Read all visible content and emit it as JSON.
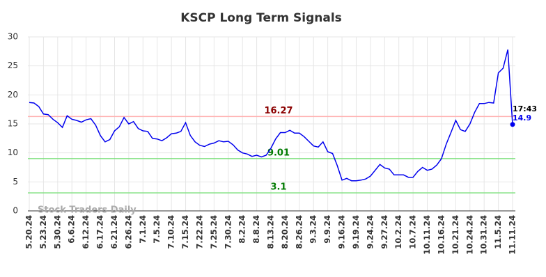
{
  "chart_data": {
    "type": "line",
    "title": "KSCP Long Term Signals",
    "watermark": "Stock Traders Daily",
    "annotation": "17:43",
    "categories": [
      "5.20.24",
      null,
      null,
      "5.23.24",
      null,
      null,
      "5.30.24",
      null,
      null,
      "6.6.24",
      null,
      null,
      "6.12.24",
      null,
      null,
      "6.17.24",
      null,
      null,
      "6.21.24",
      null,
      null,
      "6.26.24",
      null,
      null,
      "7.1.24",
      null,
      null,
      "7.5.24",
      null,
      null,
      "7.10.24",
      null,
      null,
      "7.15.24",
      null,
      null,
      "7.22.24",
      null,
      null,
      "7.25.24",
      null,
      null,
      "7.30.24",
      null,
      null,
      "8.2.24",
      null,
      null,
      "8.8.24",
      null,
      null,
      "8.13.24",
      null,
      null,
      "8.20.24",
      null,
      null,
      "8.26.24",
      null,
      null,
      "9.3.24",
      null,
      null,
      "9.9.24",
      null,
      null,
      "9.16.24",
      null,
      null,
      "9.19.24",
      null,
      null,
      "9.24.24",
      null,
      null,
      "9.27.24",
      null,
      null,
      "10.2.24",
      null,
      null,
      "10.7.24",
      null,
      null,
      "10.11.24",
      null,
      null,
      "10.16.24",
      null,
      null,
      "10.21.24",
      null,
      null,
      "10.24.24",
      null,
      null,
      "10.31.24",
      null,
      null,
      "11.5.24",
      null,
      null,
      "11.11.24"
    ],
    "series": [
      {
        "name": "KSCP",
        "color": "#0000ee",
        "values": [
          18.7,
          18.6,
          18.0,
          16.7,
          16.6,
          15.8,
          15.2,
          14.4,
          16.4,
          15.8,
          15.6,
          15.3,
          15.7,
          15.9,
          14.8,
          13.0,
          11.9,
          12.3,
          13.8,
          14.5,
          16.1,
          15.0,
          15.4,
          14.2,
          13.8,
          13.7,
          12.5,
          12.4,
          12.1,
          12.6,
          13.3,
          13.4,
          13.7,
          15.2,
          13.0,
          11.9,
          11.3,
          11.1,
          11.5,
          11.7,
          12.1,
          11.9,
          12.0,
          11.4,
          10.5,
          10.0,
          9.8,
          9.4,
          9.6,
          9.3,
          9.6,
          10.8,
          12.4,
          13.5,
          13.5,
          13.9,
          13.4,
          13.4,
          12.8,
          12.0,
          11.2,
          11.0,
          11.9,
          10.2,
          9.9,
          7.8,
          5.3,
          5.6,
          5.2,
          5.2,
          5.3,
          5.5,
          6.0,
          7.0,
          8.0,
          7.4,
          7.2,
          6.2,
          6.2,
          6.2,
          5.8,
          5.8,
          6.8,
          7.5,
          7.0,
          7.2,
          7.9,
          9.0,
          11.5,
          13.5,
          15.6,
          14.0,
          13.7,
          15.0,
          17.0,
          18.5,
          18.5,
          18.7,
          18.6,
          23.8,
          24.6,
          27.8,
          14.9
        ]
      }
    ],
    "hlines": [
      {
        "value": 16.27,
        "line_color": "#ffb3b3",
        "label_color": "#8b0000"
      },
      {
        "value": 9.01,
        "line_color": "#7ee07e",
        "label_color": "#007a00"
      },
      {
        "value": 3.1,
        "line_color": "#7ee07e",
        "label_color": "#007a00"
      }
    ],
    "ylim": [
      0,
      30
    ],
    "yticks": [
      0,
      5,
      10,
      15,
      20,
      25,
      30
    ],
    "grid": true
  }
}
